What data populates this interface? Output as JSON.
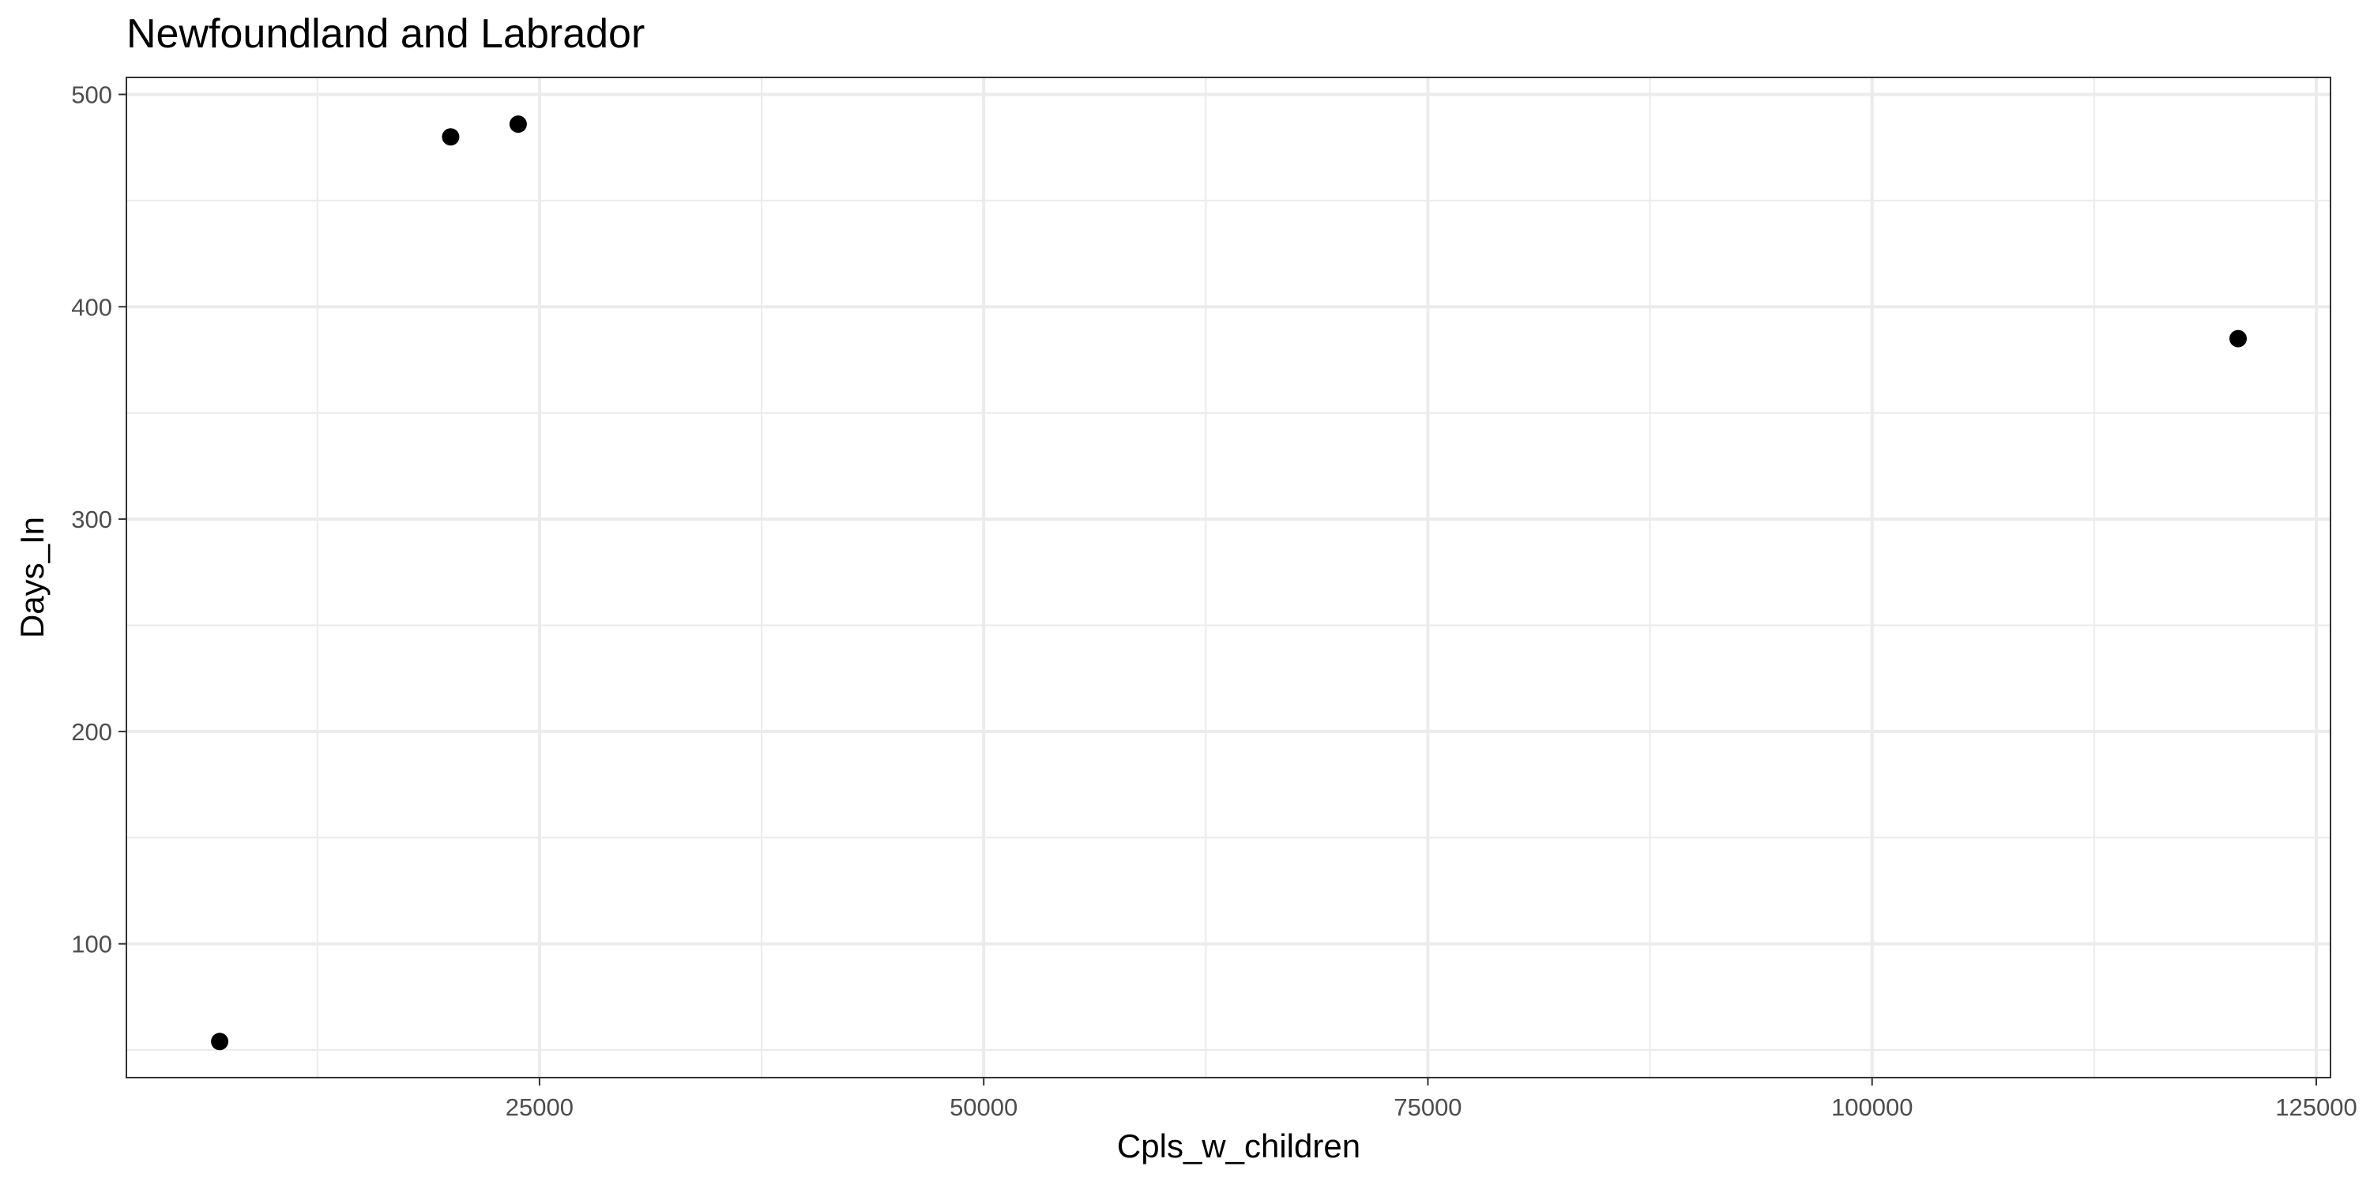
{
  "chart_data": {
    "type": "scatter",
    "title": "Newfoundland and Labrador",
    "xlabel": "Cpls_w_children",
    "ylabel": "Days_In",
    "xlim": [
      1750,
      125800
    ],
    "ylim": [
      37,
      508
    ],
    "x_ticks": [
      25000,
      50000,
      75000,
      100000,
      125000
    ],
    "x_tick_labels": [
      "25000",
      "50000",
      "75000",
      "100000",
      "125000"
    ],
    "y_ticks": [
      100,
      200,
      300,
      400,
      500
    ],
    "y_tick_labels": [
      "100",
      "200",
      "300",
      "400",
      "500"
    ],
    "x_minor_ticks": [
      12500,
      37500,
      62500,
      87500,
      112500
    ],
    "y_minor_ticks": [
      50,
      150,
      250,
      350,
      450
    ],
    "grid": true,
    "points": [
      {
        "x": 7000,
        "y": 54
      },
      {
        "x": 20000,
        "y": 480
      },
      {
        "x": 23800,
        "y": 486
      },
      {
        "x": 120600,
        "y": 385
      }
    ],
    "marker_color": "#000000"
  }
}
